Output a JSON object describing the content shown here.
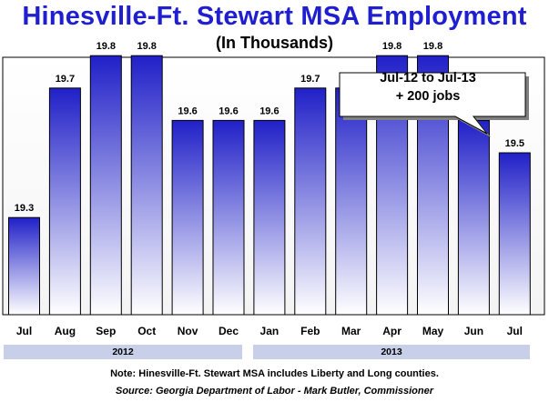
{
  "title": "Hinesville-Ft. Stewart MSA Employment",
  "subtitle": "(In Thousands)",
  "callout": {
    "line1": "Jul-12 to Jul-13",
    "line2": "+ 200 jobs"
  },
  "years": [
    "2012",
    "2013"
  ],
  "note": "Note:  Hinesville-Ft. Stewart MSA includes Liberty and Long counties.",
  "source": "Source: Georgia Department of Labor - Mark Butler, Commissioner",
  "colors": {
    "title": "#1f1fd0",
    "bar_top": "#2020c8",
    "bar_bottom": "#ffffff",
    "year_band": "#c8cfe8"
  },
  "chart_data": {
    "type": "bar",
    "categories": [
      "Jul",
      "Aug",
      "Sep",
      "Oct",
      "Nov",
      "Dec",
      "Jan",
      "Feb",
      "Mar",
      "Apr",
      "May",
      "Jun",
      "Jul"
    ],
    "values": [
      19.3,
      19.7,
      19.8,
      19.8,
      19.6,
      19.6,
      19.6,
      19.7,
      19.7,
      19.8,
      19.8,
      19.6,
      19.5
    ],
    "groups": [
      {
        "label": "2012",
        "categories": [
          "Jul",
          "Aug",
          "Sep",
          "Oct",
          "Nov",
          "Dec"
        ]
      },
      {
        "label": "2013",
        "categories": [
          "Jan",
          "Feb",
          "Mar",
          "Apr",
          "May",
          "Jun",
          "Jul"
        ]
      }
    ],
    "grid": false,
    "legend": "none"
  }
}
